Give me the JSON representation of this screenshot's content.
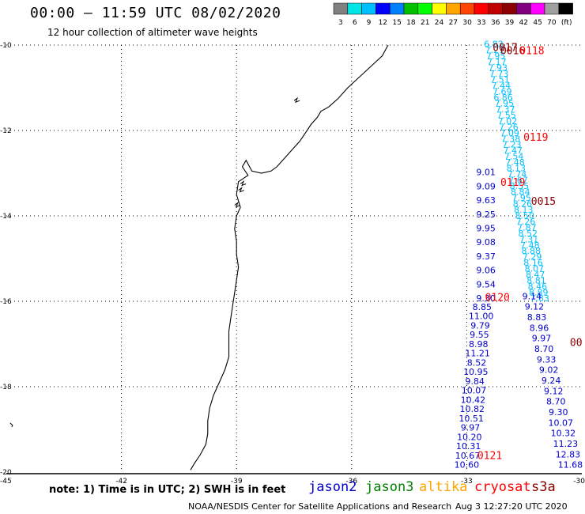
{
  "header": {
    "title": "00:00 – 11:59 UTC 08/02/2020",
    "subtitle": "12 hour collection of altimeter wave heights"
  },
  "colorbar": {
    "colors": [
      "#808080",
      "#00e5e5",
      "#00bfff",
      "#0000ff",
      "#0080ff",
      "#00c000",
      "#00ff00",
      "#ffff00",
      "#ffa500",
      "#ff4500",
      "#ff0000",
      "#c00000",
      "#8b0000",
      "#800080",
      "#ff00ff",
      "#a0a0a0",
      "#000000"
    ],
    "labels": [
      "3",
      "6",
      "9",
      "12",
      "15",
      "18",
      "21",
      "24",
      "27",
      "30",
      "33",
      "36",
      "39",
      "42",
      "45",
      "70",
      "(ft)"
    ]
  },
  "axes": {
    "lat_labels": [
      "-10",
      "-12",
      "-14",
      "-16",
      "-18",
      "-20"
    ],
    "lon_labels": [
      "-45",
      "-42",
      "-39",
      "-36",
      "-33",
      "-30"
    ]
  },
  "footer": {
    "note": "note:  1) Time is in UTC;  2) SWH is in feet",
    "credit": "NOAA/NESDIS Center for Satellite Applications and Research",
    "generated": "Aug  3 12:27:20 UTC 2020"
  },
  "satellites": [
    {
      "name": "jason2",
      "color": "#0000cd"
    },
    {
      "name": "jason3",
      "color": "#008000"
    },
    {
      "name": "altika",
      "color": "#ffa500"
    },
    {
      "name": "cryosat",
      "color": "#ff0000"
    },
    {
      "name": "s3a",
      "color": "#8b0000"
    }
  ],
  "chart_data": {
    "type": "map",
    "xlabel": "",
    "ylabel": "",
    "xlim": [
      -45,
      -30
    ],
    "ylim": [
      -20,
      -10
    ],
    "track_times": [
      {
        "label": "0017",
        "lon": -32.0,
        "lat": -10.05,
        "color": "#8b0000"
      },
      {
        "label": "0016",
        "lon": -31.8,
        "lat": -10.12,
        "color": "#8b0000"
      },
      {
        "label": "0118",
        "lon": -31.3,
        "lat": -10.12,
        "color": "#ff0000"
      },
      {
        "label": "0119",
        "lon": -31.2,
        "lat": -12.15,
        "color": "#ff0000"
      },
      {
        "label": "0119",
        "lon": -31.8,
        "lat": -13.2,
        "color": "#ff0000"
      },
      {
        "label": "0015",
        "lon": -31.0,
        "lat": -13.65,
        "color": "#8b0000"
      },
      {
        "label": "0120",
        "lon": -32.2,
        "lat": -15.9,
        "color": "#ff0000"
      },
      {
        "label": "0121",
        "lon": -32.4,
        "lat": -19.6,
        "color": "#ff0000"
      },
      {
        "label": "00",
        "lon": -30.15,
        "lat": -16.95,
        "color": "#8b0000"
      }
    ],
    "tracks": [
      {
        "satellite": "s3a",
        "color": "#00bfff",
        "lon_start": -32.3,
        "lon_end": -31.1,
        "lat_start": -10.05,
        "lat_end": -16.0,
        "values": [
          "6.83",
          "7.27",
          "7.95",
          "7.17",
          "7.93",
          "7.73",
          "7.51",
          "7.44",
          "7.69",
          "6.86",
          "7.95",
          "7.37",
          "7.55",
          "7.02",
          "7.26",
          "7.09",
          "7.38",
          "7.23",
          "7.47",
          "7.54",
          "7.48",
          "8.13",
          "7.74",
          "7.67",
          "8.55",
          "8.84",
          "7.95",
          "8.26",
          "8.13",
          "8.50",
          "7.26",
          "7.87",
          "8.52",
          "7.31",
          "7.48",
          "8.88",
          "7.29",
          "8.16",
          "8.07",
          "8.47",
          "8.81",
          "8.46",
          "8.89",
          "7.83"
        ]
      },
      {
        "satellite": "jason3",
        "color": "#0000cd",
        "lon_start": -32.5,
        "lon_end": -32.5,
        "lat_start": -13.05,
        "lat_end": -16.0,
        "values": [
          "9.01",
          "9.09",
          "9.63",
          "9.25",
          "9.95",
          "9.08",
          "9.37",
          "9.06",
          "9.54",
          "9.30"
        ]
      },
      {
        "satellite": "cryosat",
        "color": "#0000cd",
        "lon_start": -31.3,
        "lon_end": -30.3,
        "lat_start": -15.95,
        "lat_end": -19.9,
        "values": [
          "9.14",
          "9.12",
          "8.83",
          "8.96",
          "9.97",
          "8.70",
          "9.33",
          "9.02",
          "9.24",
          "9.12",
          "8.70",
          "9.30",
          "10.07",
          "10.32",
          "11.23",
          "12.83",
          "11.68"
        ]
      },
      {
        "satellite": "jason2",
        "color": "#0000cd",
        "lon_start": -32.6,
        "lon_end": -33.0,
        "lat_start": -16.2,
        "lat_end": -19.9,
        "values": [
          "8.85",
          "11.00",
          "9.79",
          "9.55",
          "8.98",
          "11.21",
          "8.52",
          "10.95",
          "9.84",
          "10.07",
          "10.42",
          "10.82",
          "10.51",
          "9.97",
          "10.20",
          "10.31",
          "10.67",
          "10.60"
        ]
      }
    ]
  }
}
